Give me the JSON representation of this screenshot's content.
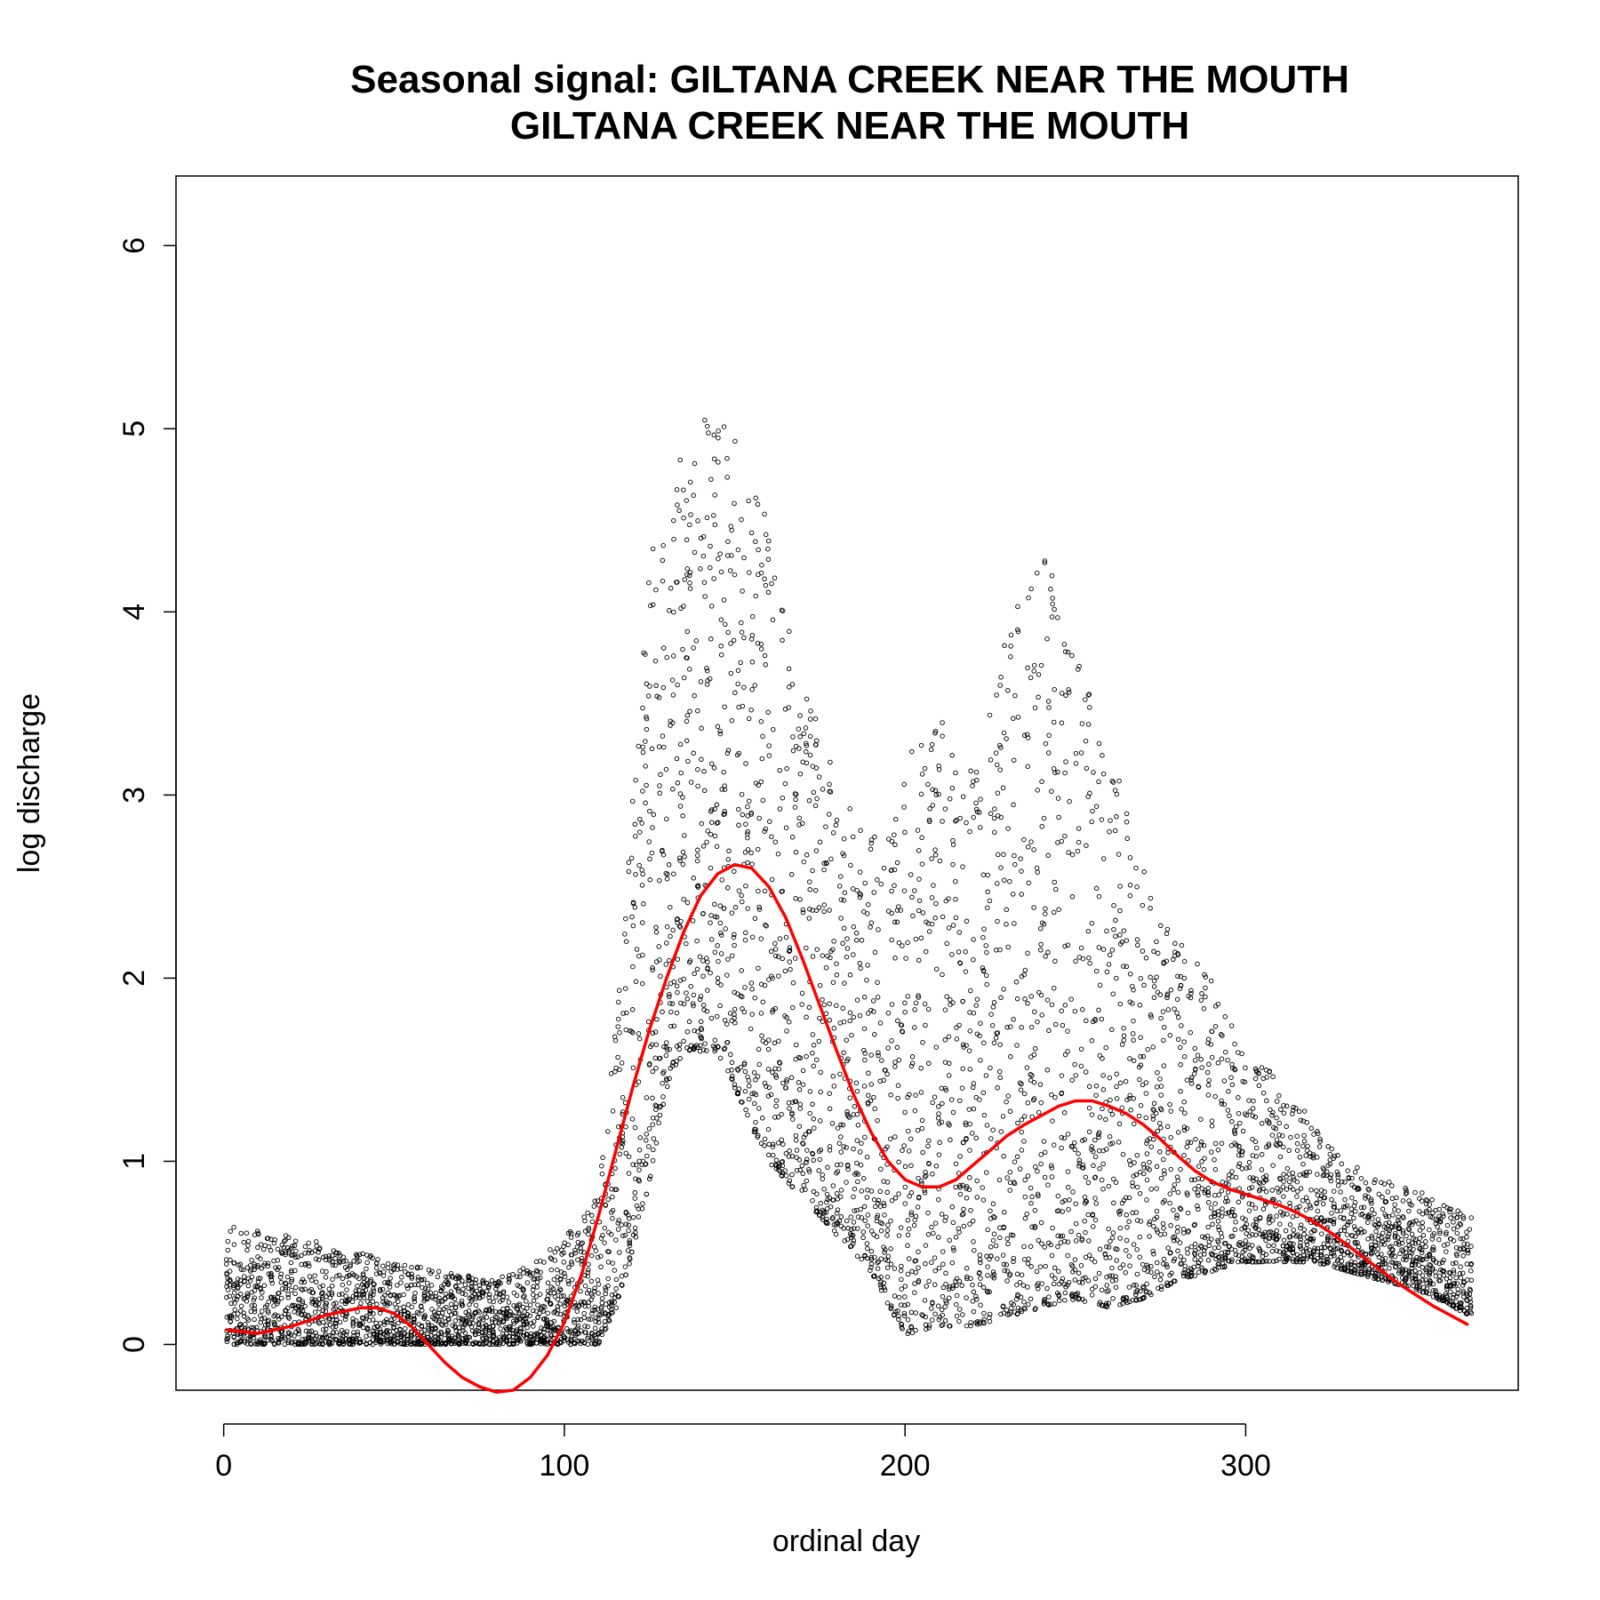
{
  "chart_data": {
    "type": "scatter",
    "title": "Seasonal signal: GILTANA CREEK NEAR THE MOUTH",
    "subtitle": "GILTANA CREEK NEAR THE MOUTH",
    "xlabel": "ordinal day",
    "ylabel": "log discharge",
    "xlim": [
      -14,
      380
    ],
    "ylim": [
      -0.25,
      6.38
    ],
    "x_ticks": [
      0,
      100,
      200,
      300
    ],
    "y_ticks": [
      0,
      1,
      2,
      3,
      4,
      5,
      6
    ],
    "grid": false,
    "legend": "none",
    "point_color": "#000000",
    "curve_color": "#ff0000",
    "series": [
      {
        "kind": "smoothed-curve",
        "x": [
          1,
          10,
          20,
          30,
          40,
          45,
          50,
          55,
          60,
          65,
          70,
          75,
          80,
          85,
          90,
          95,
          100,
          105,
          110,
          115,
          120,
          125,
          130,
          135,
          140,
          145,
          150,
          155,
          160,
          165,
          170,
          175,
          180,
          185,
          190,
          195,
          200,
          205,
          210,
          215,
          220,
          225,
          230,
          235,
          240,
          245,
          250,
          255,
          260,
          265,
          270,
          275,
          280,
          285,
          290,
          295,
          300,
          305,
          310,
          315,
          320,
          325,
          330,
          335,
          340,
          345,
          350,
          355,
          360,
          365
        ],
        "values": [
          0.08,
          0.06,
          0.1,
          0.16,
          0.2,
          0.2,
          0.17,
          0.1,
          0.0,
          -0.1,
          -0.18,
          -0.23,
          -0.26,
          -0.25,
          -0.18,
          -0.06,
          0.12,
          0.38,
          0.7,
          1.05,
          1.4,
          1.72,
          2.0,
          2.25,
          2.45,
          2.57,
          2.62,
          2.6,
          2.5,
          2.33,
          2.1,
          1.85,
          1.6,
          1.36,
          1.16,
          1.0,
          0.9,
          0.86,
          0.86,
          0.9,
          0.98,
          1.06,
          1.14,
          1.2,
          1.25,
          1.3,
          1.33,
          1.33,
          1.3,
          1.26,
          1.2,
          1.12,
          1.03,
          0.95,
          0.89,
          0.85,
          0.82,
          0.79,
          0.76,
          0.72,
          0.67,
          0.61,
          0.54,
          0.47,
          0.4,
          0.33,
          0.27,
          0.21,
          0.16,
          0.11
        ]
      }
    ],
    "scatter_bands": [
      {
        "x": [
          1,
          20,
          40,
          60,
          80,
          95,
          100,
          105,
          110,
          115,
          120,
          125,
          130,
          135,
          140,
          145,
          150,
          155,
          160,
          165,
          170,
          175,
          180,
          190,
          200,
          210,
          220,
          230,
          240,
          250,
          260,
          270,
          280,
          290,
          300,
          310,
          320,
          330,
          340,
          350,
          360,
          366
        ],
        "low": [
          0.0,
          0.0,
          0.0,
          0.0,
          0.0,
          0.0,
          0.0,
          0.0,
          0.0,
          0.2,
          0.5,
          0.9,
          1.4,
          1.6,
          1.6,
          1.6,
          1.4,
          1.2,
          1.0,
          0.9,
          0.8,
          0.7,
          0.6,
          0.4,
          0.05,
          0.1,
          0.1,
          0.15,
          0.2,
          0.25,
          0.2,
          0.25,
          0.35,
          0.4,
          0.45,
          0.45,
          0.45,
          0.4,
          0.35,
          0.3,
          0.22,
          0.15
        ],
        "high": [
          0.65,
          0.6,
          0.5,
          0.42,
          0.35,
          0.5,
          0.6,
          0.65,
          0.9,
          1.7,
          3.0,
          4.3,
          4.6,
          4.9,
          5.1,
          5.2,
          5.0,
          4.8,
          4.5,
          4.0,
          3.7,
          3.4,
          3.1,
          2.8,
          3.2,
          3.5,
          3.1,
          3.9,
          4.4,
          3.8,
          3.3,
          2.6,
          2.2,
          2.0,
          1.6,
          1.45,
          1.2,
          1.0,
          0.9,
          0.85,
          0.75,
          0.7
        ]
      }
    ]
  }
}
